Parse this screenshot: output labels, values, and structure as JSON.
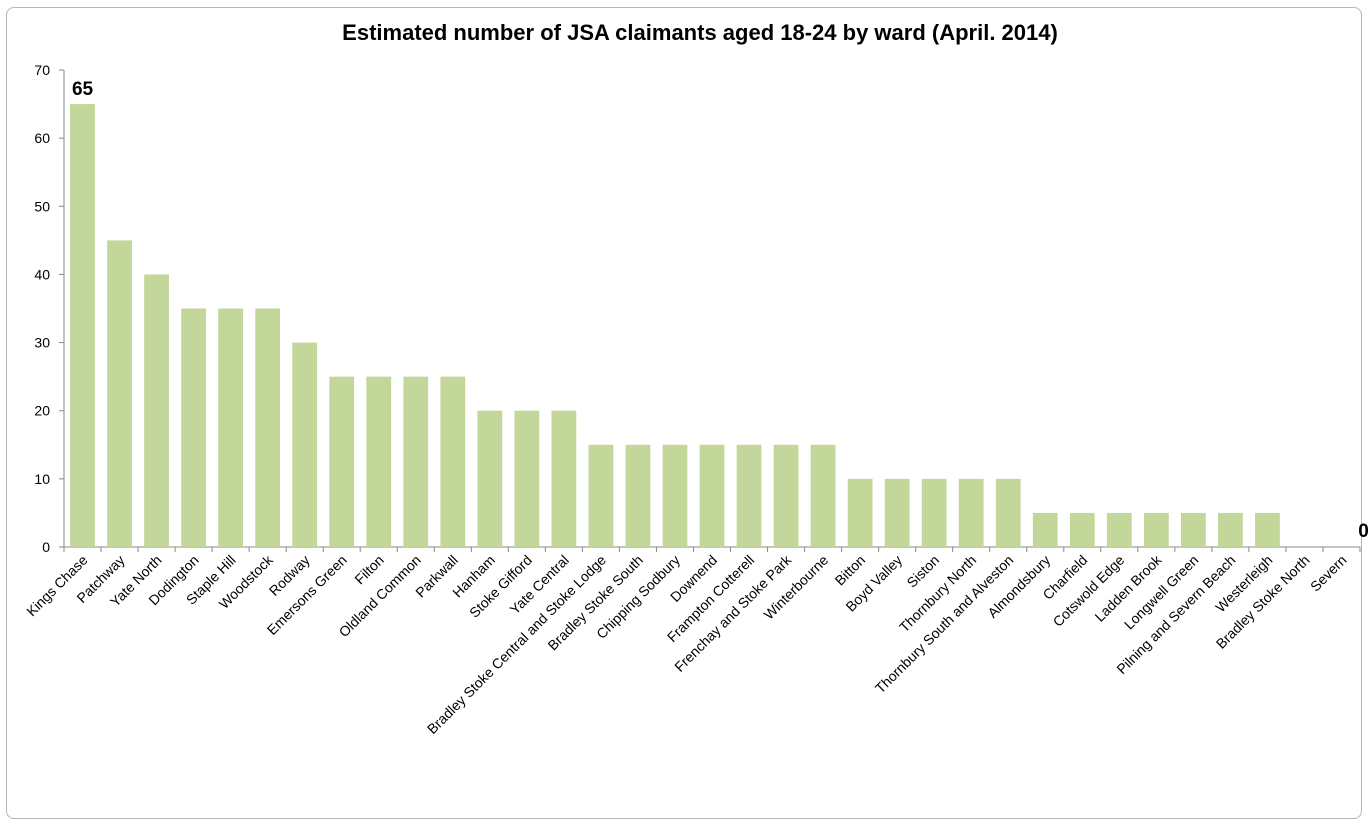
{
  "chart_data": {
    "type": "bar",
    "title": "Estimated number of JSA claimants aged 18-24 by ward (April. 2014)",
    "xlabel": "",
    "ylabel": "",
    "ylim": [
      0,
      70
    ],
    "yticks": [
      0,
      10,
      20,
      30,
      40,
      50,
      60,
      70
    ],
    "bar_color": "#c4d79b",
    "categories": [
      "Kings Chase",
      "Patchway",
      "Yate North",
      "Dodington",
      "Staple Hill",
      "Woodstock",
      "Rodway",
      "Emersons Green",
      "Filton",
      "Oldland Common",
      "Parkwall",
      "Hanham",
      "Stoke Gifford",
      "Yate Central",
      "Bradley Stoke Central and Stoke Lodge",
      "Bradley Stoke South",
      "Chipping Sodbury",
      "Downend",
      "Frampton Cotterell",
      "Frenchay and Stoke Park",
      "Winterbourne",
      "Bitton",
      "Boyd Valley",
      "Siston",
      "Thornbury North",
      "Thornbury South and Alveston",
      "Almondsbury",
      "Charfield",
      "Cotswold Edge",
      "Ladden Brook",
      "Longwell Green",
      "Pilning and Severn Beach",
      "Westerleigh",
      "Bradley Stoke North",
      "Severn"
    ],
    "values": [
      65,
      45,
      40,
      35,
      35,
      35,
      30,
      25,
      25,
      25,
      25,
      20,
      20,
      20,
      15,
      15,
      15,
      15,
      15,
      15,
      15,
      10,
      10,
      10,
      10,
      10,
      5,
      5,
      5,
      5,
      5,
      5,
      5,
      0,
      0
    ],
    "data_labels": [
      {
        "index": 0,
        "text": "65"
      },
      {
        "index": 34,
        "text": "0"
      }
    ]
  }
}
